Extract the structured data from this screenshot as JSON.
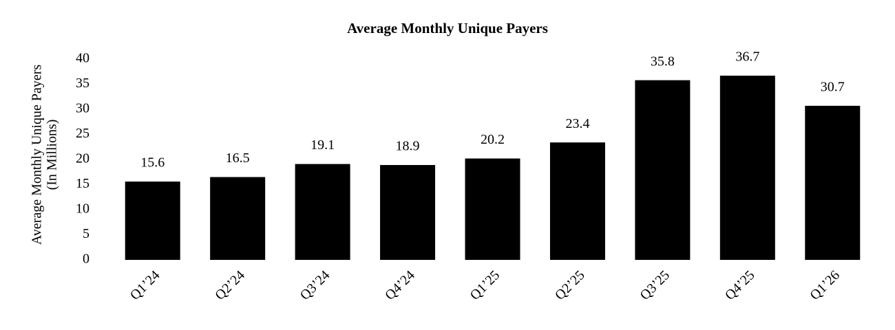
{
  "chart_data": {
    "type": "bar",
    "title": "Average Monthly Unique Payers",
    "y_label": [
      "Average Monthly Unique Payers",
      "(In Millions)"
    ],
    "categories": [
      "Q1’24",
      "Q2’24",
      "Q3’24",
      "Q4’24",
      "Q1’25",
      "Q2’25",
      "Q3’25",
      "Q4’25",
      "Q1’26"
    ],
    "values": [
      15.6,
      16.5,
      19.1,
      18.9,
      20.2,
      23.4,
      35.8,
      36.7,
      30.7
    ],
    "color": "#000000",
    "ylim": [
      0,
      40
    ],
    "yticks": [
      0,
      5,
      10,
      15,
      20,
      25,
      30,
      35,
      40
    ],
    "grid": false
  }
}
